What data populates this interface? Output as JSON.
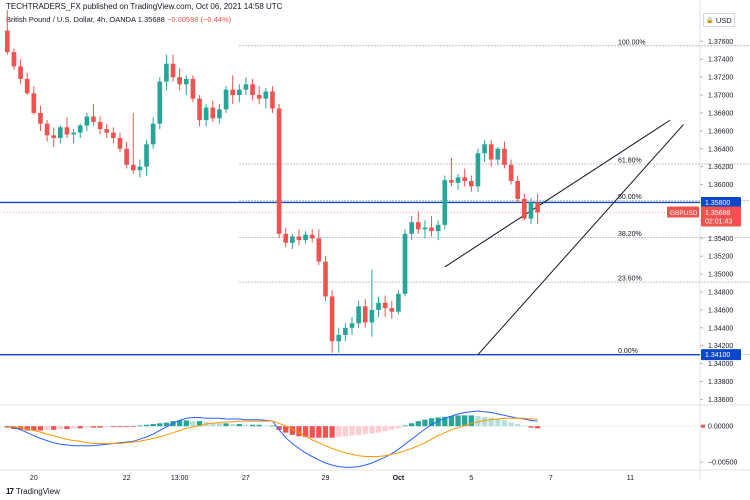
{
  "header": {
    "publish_line": "TECHTRADERS_FX published on TradingView.com, Oct 06, 2021 14:58 UTC",
    "symbol_line": "British Pound / U.S. Dollar, 4h, OANDA",
    "price": "1.35688",
    "change": "−0.00598 (−0.44%)"
  },
  "currency_selector": {
    "label": "USD",
    "icon": "lock-icon"
  },
  "footer": {
    "brand": "TradingView",
    "icon": "tradingview-logo-icon"
  },
  "colors": {
    "up": "#26a69a",
    "down": "#ef5350",
    "hline": "#0d47c9",
    "fib": "#9598a1",
    "macd": "#2962ff",
    "signal": "#ff9800",
    "hist_up_strong": "#26a69a",
    "hist_up_weak": "#b2dfdb",
    "hist_down_strong": "#ef5350",
    "hist_down_weak": "#ffcdd2"
  },
  "chart_data": {
    "type": "candlestick",
    "symbol": "GBPUSD",
    "price_axis": {
      "range": [
        1.3356,
        1.3795
      ],
      "ticks": [
        "1.37600",
        "1.37400",
        "1.37200",
        "1.37000",
        "1.36800",
        "1.36600",
        "1.36400",
        "1.36200",
        "1.36000",
        "1.35800",
        "1.35600",
        "1.35400",
        "1.35200",
        "1.35000",
        "1.34800",
        "1.34600",
        "1.34400",
        "1.34200",
        "1.34000",
        "1.33800",
        "1.33600"
      ]
    },
    "time_axis": {
      "ticks": [
        {
          "label": "20",
          "i": 4
        },
        {
          "label": "22",
          "i": 18
        },
        {
          "label": "13:00",
          "i": 26
        },
        {
          "label": "27",
          "i": 36
        },
        {
          "label": "29",
          "i": 48
        },
        {
          "label": "Oct",
          "i": 59
        },
        {
          "label": "5",
          "i": 70
        },
        {
          "label": "7",
          "i": 82
        },
        {
          "label": "11",
          "i": 94
        }
      ],
      "bars_visible": 105
    },
    "candles": [
      [
        1.3772,
        1.3795,
        1.3745,
        1.3748
      ],
      [
        1.3748,
        1.3752,
        1.3728,
        1.3732
      ],
      [
        1.3732,
        1.374,
        1.3712,
        1.3718
      ],
      [
        1.3718,
        1.3725,
        1.37,
        1.3702
      ],
      [
        1.3702,
        1.371,
        1.3678,
        1.368
      ],
      [
        1.368,
        1.3688,
        1.366,
        1.3668
      ],
      [
        1.3668,
        1.3672,
        1.3648,
        1.3655
      ],
      [
        1.3655,
        1.3664,
        1.3642,
        1.3652
      ],
      [
        1.3652,
        1.3666,
        1.3646,
        1.3664
      ],
      [
        1.3664,
        1.3675,
        1.3652,
        1.3656
      ],
      [
        1.3656,
        1.3662,
        1.3646,
        1.3658
      ],
      [
        1.3658,
        1.3668,
        1.3652,
        1.3666
      ],
      [
        1.3666,
        1.368,
        1.366,
        1.3676
      ],
      [
        1.3676,
        1.369,
        1.3666,
        1.367
      ],
      [
        1.367,
        1.3676,
        1.3656,
        1.3662
      ],
      [
        1.3662,
        1.3668,
        1.3652,
        1.3658
      ],
      [
        1.3658,
        1.3664,
        1.3646,
        1.3652
      ],
      [
        1.3652,
        1.3658,
        1.3636,
        1.364
      ],
      [
        1.364,
        1.3648,
        1.3618,
        1.3622
      ],
      [
        1.3622,
        1.368,
        1.3612,
        1.3616
      ],
      [
        1.3616,
        1.3628,
        1.3608,
        1.362
      ],
      [
        1.362,
        1.365,
        1.361,
        1.3645
      ],
      [
        1.3645,
        1.3675,
        1.364,
        1.3668
      ],
      [
        1.3668,
        1.372,
        1.3662,
        1.3715
      ],
      [
        1.3715,
        1.3745,
        1.3705,
        1.3735
      ],
      [
        1.3735,
        1.3745,
        1.3715,
        1.372
      ],
      [
        1.372,
        1.373,
        1.3705,
        1.3712
      ],
      [
        1.3712,
        1.3722,
        1.37,
        1.3718
      ],
      [
        1.3718,
        1.3722,
        1.3692,
        1.3696
      ],
      [
        1.3696,
        1.37,
        1.3665,
        1.3672
      ],
      [
        1.3672,
        1.369,
        1.3665,
        1.3686
      ],
      [
        1.3686,
        1.3694,
        1.367,
        1.3674
      ],
      [
        1.3674,
        1.369,
        1.3668,
        1.3684
      ],
      [
        1.3684,
        1.371,
        1.368,
        1.3706
      ],
      [
        1.3706,
        1.3722,
        1.369,
        1.37
      ],
      [
        1.37,
        1.3712,
        1.3692,
        1.3706
      ],
      [
        1.3706,
        1.372,
        1.37,
        1.3712
      ],
      [
        1.3712,
        1.3718,
        1.3694,
        1.37
      ],
      [
        1.37,
        1.371,
        1.369,
        1.3696
      ],
      [
        1.3696,
        1.3708,
        1.3685,
        1.3704
      ],
      [
        1.3704,
        1.371,
        1.368,
        1.3685
      ],
      [
        1.3685,
        1.369,
        1.354,
        1.3545
      ],
      [
        1.3545,
        1.3552,
        1.353,
        1.3535
      ],
      [
        1.3535,
        1.3545,
        1.3528,
        1.3542
      ],
      [
        1.3542,
        1.355,
        1.3532,
        1.3538
      ],
      [
        1.3538,
        1.3548,
        1.3534,
        1.3544
      ],
      [
        1.3544,
        1.355,
        1.3535,
        1.354
      ],
      [
        1.354,
        1.355,
        1.351,
        1.3514
      ],
      [
        1.3514,
        1.352,
        1.347,
        1.3475
      ],
      [
        1.3475,
        1.3482,
        1.3412,
        1.3425
      ],
      [
        1.3425,
        1.344,
        1.3412,
        1.3432
      ],
      [
        1.3432,
        1.3445,
        1.3425,
        1.344
      ],
      [
        1.344,
        1.3452,
        1.3432,
        1.3445
      ],
      [
        1.3445,
        1.347,
        1.344,
        1.3464
      ],
      [
        1.3464,
        1.3472,
        1.344,
        1.3446
      ],
      [
        1.3446,
        1.3505,
        1.343,
        1.346
      ],
      [
        1.346,
        1.3475,
        1.3452,
        1.3468
      ],
      [
        1.3468,
        1.3476,
        1.3452,
        1.3462
      ],
      [
        1.3462,
        1.347,
        1.345,
        1.3458
      ],
      [
        1.3458,
        1.3482,
        1.3455,
        1.3478
      ],
      [
        1.3478,
        1.355,
        1.3475,
        1.3545
      ],
      [
        1.3545,
        1.3565,
        1.3538,
        1.3558
      ],
      [
        1.3558,
        1.357,
        1.3545,
        1.355
      ],
      [
        1.355,
        1.356,
        1.354,
        1.3552
      ],
      [
        1.3552,
        1.3565,
        1.3542,
        1.3548
      ],
      [
        1.3548,
        1.356,
        1.3538,
        1.3555
      ],
      [
        1.3555,
        1.361,
        1.355,
        1.3605
      ],
      [
        1.3605,
        1.363,
        1.3598,
        1.3602
      ],
      [
        1.3602,
        1.3612,
        1.3594,
        1.3608
      ],
      [
        1.3608,
        1.3618,
        1.3598,
        1.3604
      ],
      [
        1.3604,
        1.361,
        1.3592,
        1.3598
      ],
      [
        1.3598,
        1.364,
        1.3592,
        1.3635
      ],
      [
        1.3635,
        1.365,
        1.3625,
        1.3645
      ],
      [
        1.3645,
        1.365,
        1.362,
        1.3628
      ],
      [
        1.3628,
        1.3642,
        1.3622,
        1.364
      ],
      [
        1.364,
        1.3648,
        1.3618,
        1.3622
      ],
      [
        1.3622,
        1.3628,
        1.36,
        1.3604
      ],
      [
        1.3604,
        1.361,
        1.358,
        1.3584
      ],
      [
        1.3584,
        1.359,
        1.356,
        1.3562
      ],
      [
        1.3562,
        1.3585,
        1.3556,
        1.358
      ],
      [
        1.358,
        1.359,
        1.3556,
        1.3569
      ]
    ],
    "horizontal_levels": [
      {
        "price": 1.358,
        "label": "1.35800"
      },
      {
        "price": 1.341,
        "label": "1.34100"
      }
    ],
    "fibonacci": {
      "start_bar": 35,
      "end_bar": 113,
      "levels": [
        {
          "ratio": "100.00%",
          "price": 1.3755
        },
        {
          "ratio": "61.80%",
          "price": 1.3623
        },
        {
          "ratio": "50.00%",
          "price": 1.3582
        },
        {
          "ratio": "38.20%",
          "price": 1.3541
        },
        {
          "ratio": "23.60%",
          "price": 1.3491
        },
        {
          "ratio": "0.00%",
          "price": 1.341
        }
      ]
    },
    "trendlines": [
      {
        "from": [
          66,
          1.3508
        ],
        "to": [
          100,
          1.3672
        ]
      },
      {
        "from": [
          71,
          1.341
        ],
        "to": [
          102,
          1.3667
        ]
      }
    ],
    "last_price_label": {
      "symbol": "GBPUSD",
      "price": "1.35688",
      "countdown": "02:01:43"
    },
    "macd": {
      "axis_ticks": [
        "0.00000",
        "−0.00500"
      ],
      "range": [
        -0.0058,
        0.0028
      ],
      "histogram": [
        -0.0002,
        -0.0004,
        -0.0005,
        -0.0006,
        -0.0006,
        -0.0006,
        -0.0005,
        -0.0005,
        -0.0004,
        -0.0004,
        -0.0003,
        -0.0003,
        -0.0002,
        -0.0002,
        -0.0002,
        -0.0001,
        -0.0001,
        -0.0001,
        -0.0001,
        -0.0001,
        0.0001,
        0.0002,
        0.0003,
        0.0004,
        0.0005,
        0.0007,
        0.0008,
        0.0008,
        0.0007,
        0.0007,
        0.0006,
        0.0005,
        0.0004,
        0.0004,
        0.0003,
        0.0003,
        0.0002,
        0.0002,
        0.0002,
        0.0001,
        0.0001,
        -0.0005,
        -0.0009,
        -0.0012,
        -0.0014,
        -0.0015,
        -0.0016,
        -0.0016,
        -0.0016,
        -0.0016,
        -0.0015,
        -0.0014,
        -0.0013,
        -0.0012,
        -0.0011,
        -0.001,
        -0.0009,
        -0.0007,
        -0.0005,
        -0.0003,
        0.0001,
        0.0004,
        0.0007,
        0.0009,
        0.0011,
        0.0012,
        0.0013,
        0.0014,
        0.0015,
        0.0015,
        0.0015,
        0.0014,
        0.0013,
        0.0012,
        0.001,
        0.0008,
        0.0005,
        0.0003,
        0.0001,
        -0.0002,
        -0.0003
      ],
      "macd_line": [
        0.0,
        -0.0002,
        -0.0005,
        -0.0009,
        -0.0013,
        -0.0017,
        -0.002,
        -0.0023,
        -0.0025,
        -0.0026,
        -0.0027,
        -0.0027,
        -0.0027,
        -0.0027,
        -0.0026,
        -0.0025,
        -0.0024,
        -0.0023,
        -0.0022,
        -0.0021,
        -0.0018,
        -0.0015,
        -0.0011,
        -0.0006,
        -0.0001,
        0.0004,
        0.0008,
        0.0011,
        0.0012,
        0.0012,
        0.0011,
        0.0011,
        0.0011,
        0.001,
        0.001,
        0.001,
        0.0009,
        0.0009,
        0.0009,
        0.0008,
        0.0007,
        -0.0005,
        -0.0016,
        -0.0024,
        -0.0031,
        -0.0037,
        -0.0042,
        -0.0047,
        -0.0051,
        -0.0054,
        -0.0056,
        -0.0057,
        -0.0057,
        -0.0056,
        -0.0054,
        -0.0051,
        -0.0047,
        -0.0043,
        -0.0038,
        -0.0032,
        -0.0025,
        -0.0018,
        -0.0011,
        -0.0004,
        0.0002,
        0.0007,
        0.0011,
        0.0014,
        0.0017,
        0.0019,
        0.002,
        0.0021,
        0.002,
        0.0019,
        0.0017,
        0.0015,
        0.0013,
        0.0011,
        0.001,
        0.0008,
        0.0007
      ],
      "signal_line": [
        0.0,
        -0.0001,
        -0.0002,
        -0.0004,
        -0.0006,
        -0.0008,
        -0.0011,
        -0.0013,
        -0.0016,
        -0.0018,
        -0.002,
        -0.0021,
        -0.0023,
        -0.0024,
        -0.0024,
        -0.0024,
        -0.0024,
        -0.0024,
        -0.0023,
        -0.0022,
        -0.0021,
        -0.0019,
        -0.0017,
        -0.0015,
        -0.0012,
        -0.0009,
        -0.0006,
        -0.0003,
        -0.0001,
        0.0001,
        0.0003,
        0.0004,
        0.0005,
        0.0006,
        0.0006,
        0.0007,
        0.0007,
        0.0007,
        0.0007,
        0.0007,
        0.0007,
        0.0004,
        0.0,
        -0.0004,
        -0.0009,
        -0.0014,
        -0.0019,
        -0.0023,
        -0.0027,
        -0.0031,
        -0.0034,
        -0.0037,
        -0.0039,
        -0.0041,
        -0.0042,
        -0.0042,
        -0.0042,
        -0.0041,
        -0.0039,
        -0.0037,
        -0.0034,
        -0.0031,
        -0.0027,
        -0.0023,
        -0.0018,
        -0.0013,
        -0.0009,
        -0.0005,
        -0.0002,
        0.0001,
        0.0004,
        0.0006,
        0.0008,
        0.0009,
        0.001,
        0.0011,
        0.0011,
        0.0011,
        0.0011,
        0.001,
        0.001
      ]
    }
  }
}
